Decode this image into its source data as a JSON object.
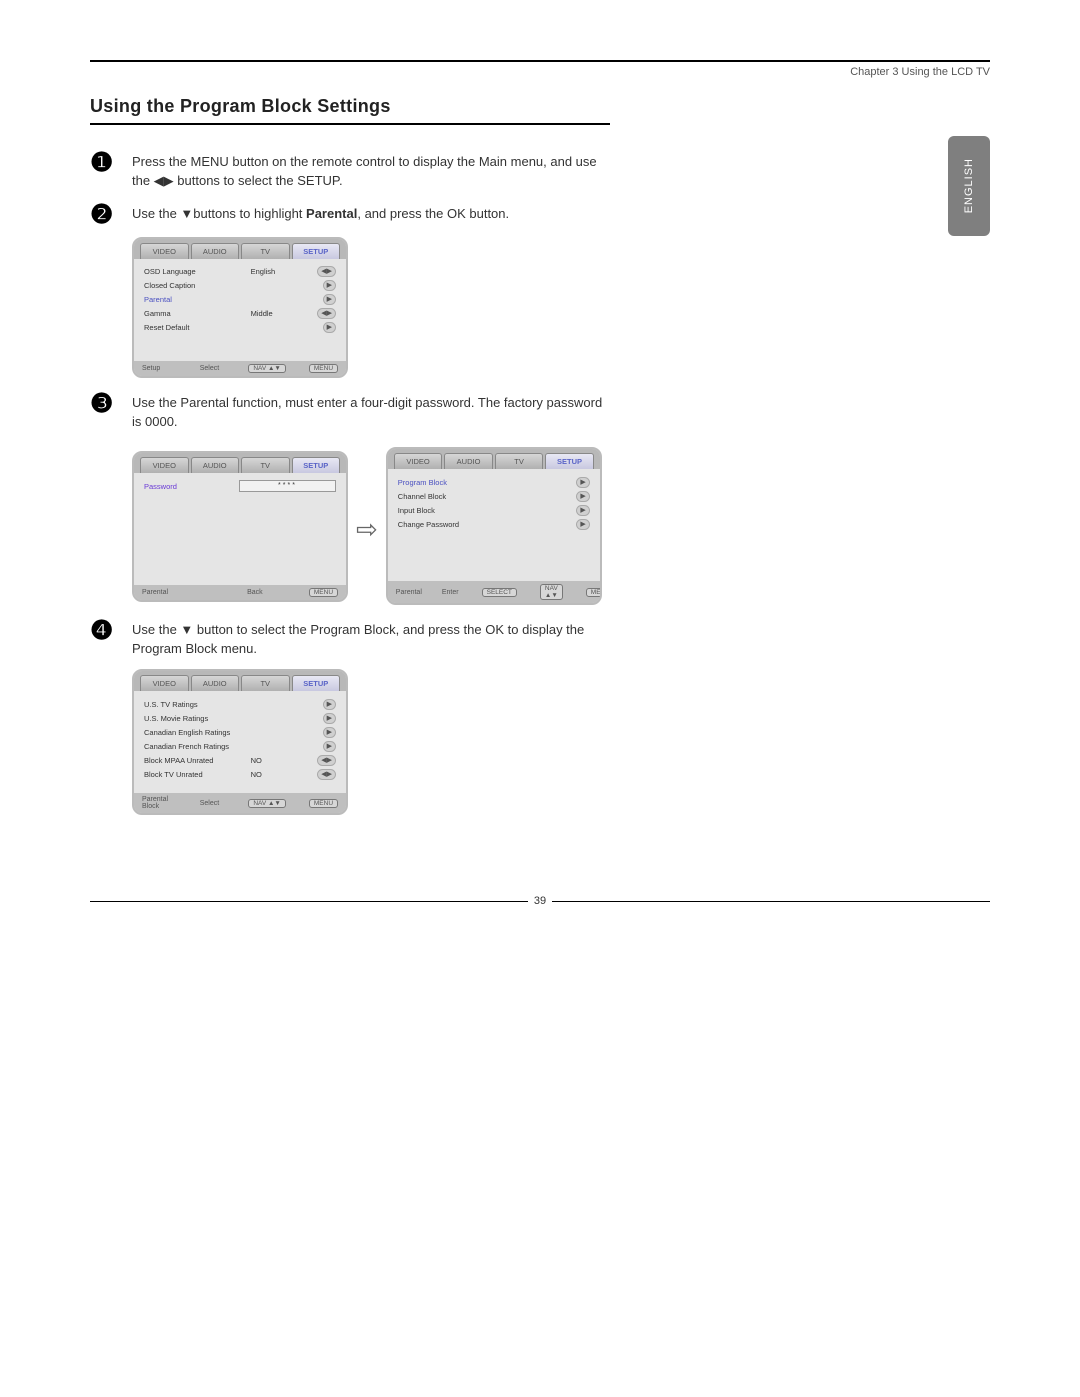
{
  "chapter_header": "Chapter 3 Using the LCD TV",
  "section_title": "Using the Program Block Settings",
  "language_tab": "ENGLISH",
  "page_number": "39",
  "steps": {
    "s1": {
      "num": "❶",
      "pre": "Press the ",
      "kw1": "MENU",
      "mid": " button on the remote control to display the Main menu, and use the ◀▶ buttons to select the ",
      "kw2": "SETUP",
      "post": "."
    },
    "s2": {
      "num": "❷",
      "pre": "Use the ▼buttons to highlight ",
      "bold": "Parental",
      "mid": ", and press the ",
      "kw": "OK",
      "post": " button."
    },
    "s3": {
      "num": "❸",
      "pre": "Use the ",
      "kw": "Parental",
      "mid": " function, must enter a four-digit password. The factory password is ",
      "code": "0000",
      "post": "."
    },
    "s4": {
      "num": "❹",
      "pre": "Use the ▼ button to select the ",
      "kw1": "Program Block",
      "mid": ",  and press the ",
      "kw2": "OK",
      "post": " to display the Program Block menu."
    }
  },
  "tabs": {
    "video": "VIDEO",
    "audio": "AUDIO",
    "tv": "TV",
    "setup": "SETUP"
  },
  "osd_setup": {
    "items": [
      {
        "label": "OSD Language",
        "value": "English",
        "arrow": "◀▶"
      },
      {
        "label": "Closed Caption",
        "value": "",
        "arrow": "▶"
      },
      {
        "label": "Parental",
        "value": "",
        "arrow": "▶",
        "hi": true
      },
      {
        "label": "Gamma",
        "value": "Middle",
        "arrow": "◀▶"
      },
      {
        "label": "Reset Default",
        "value": "",
        "arrow": "▶"
      }
    ],
    "footer_left": "Setup",
    "footer_mid": "Select",
    "btn_nav": "NAV ▲▼",
    "btn_menu": "MENU"
  },
  "osd_password": {
    "item_label": "Password",
    "masked": "****",
    "footer_left": "Parental",
    "footer_mid": "Back",
    "btn_menu": "MENU"
  },
  "osd_parental": {
    "items": [
      {
        "label": "Program Block",
        "arrow": "▶",
        "hi": true
      },
      {
        "label": "Channel Block",
        "arrow": "▶"
      },
      {
        "label": "Input Block",
        "arrow": "▶"
      },
      {
        "label": "Change Password",
        "arrow": "▶"
      }
    ],
    "footer_left": "Parental",
    "footer_mid": "Enter",
    "btn_select": "SELECT",
    "btn_nav": "NAV ▲▼",
    "btn_menu": "MENU"
  },
  "osd_block": {
    "items": [
      {
        "label": "U.S. TV Ratings",
        "value": "",
        "arrow": "▶"
      },
      {
        "label": "U.S. Movie Ratings",
        "value": "",
        "arrow": "▶"
      },
      {
        "label": "Canadian English Ratings",
        "value": "",
        "arrow": "▶"
      },
      {
        "label": "Canadian French Ratings",
        "value": "",
        "arrow": "▶"
      },
      {
        "label": "Block MPAA Unrated",
        "value": "NO",
        "arrow": "◀▶"
      },
      {
        "label": "Block TV Unrated",
        "value": "NO",
        "arrow": "◀▶"
      }
    ],
    "footer_left": "Parental Block",
    "footer_mid": "Select",
    "btn_nav": "NAV ▲▼",
    "btn_menu": "MENU"
  },
  "arrow_glyph": "⇨"
}
